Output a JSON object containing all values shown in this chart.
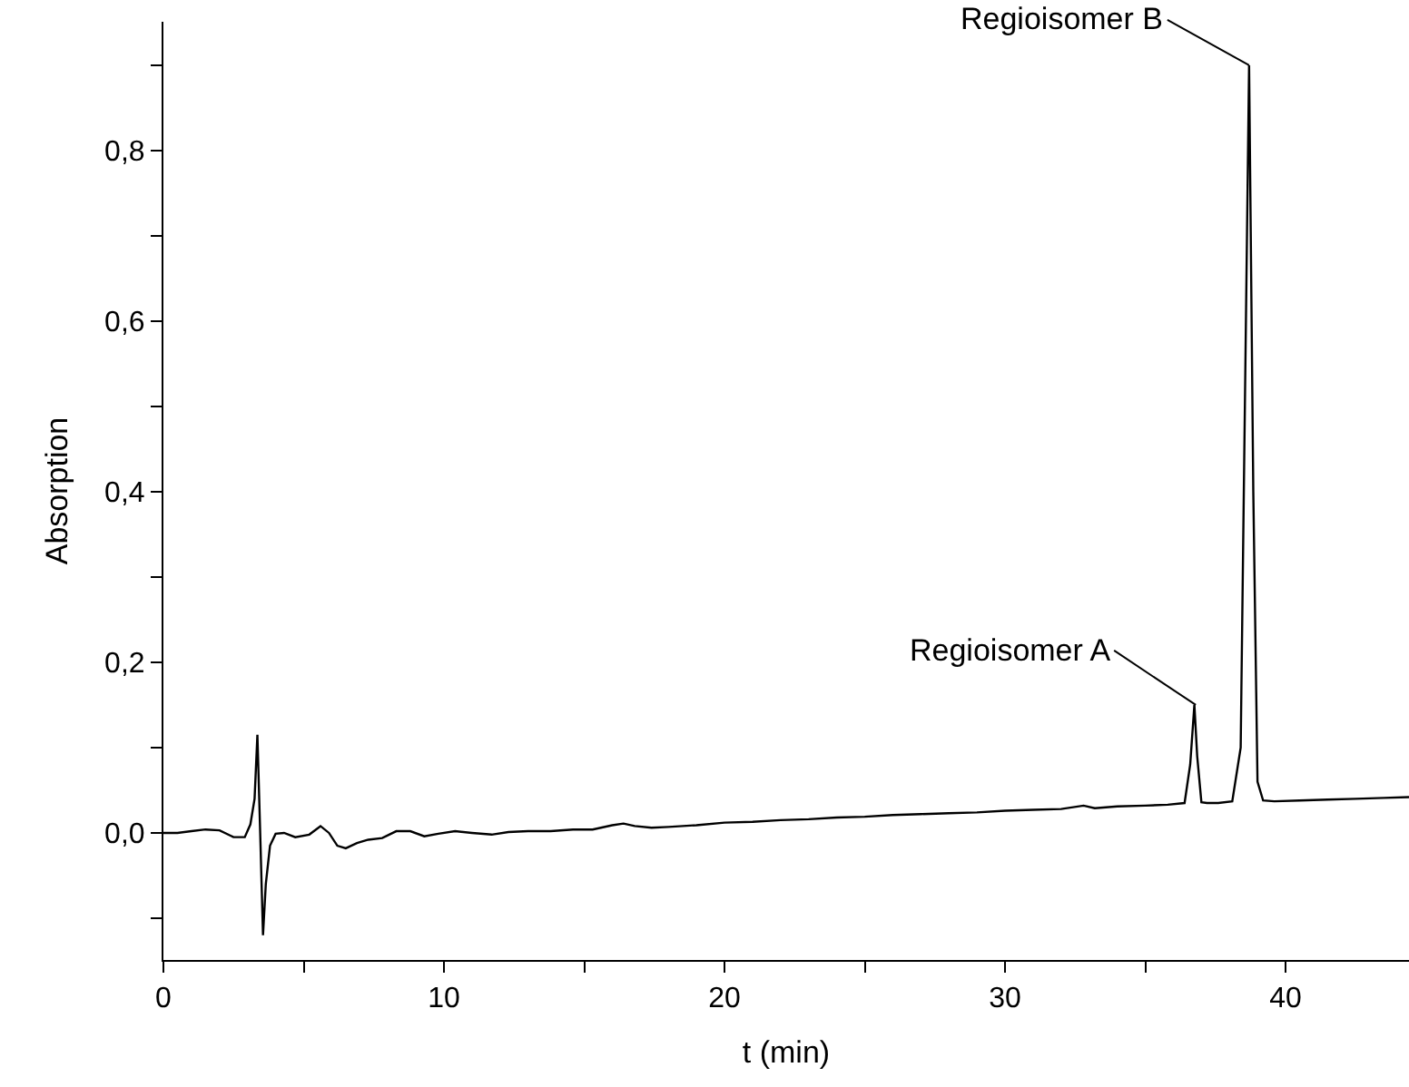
{
  "chart_data": {
    "type": "line",
    "xlabel": "t (min)",
    "ylabel": "Absorption",
    "xlim": [
      0,
      44.4
    ],
    "ylim": [
      -0.149,
      0.951
    ],
    "xticks": [
      0,
      {
        "value": 5,
        "label": null
      },
      10,
      {
        "value": 15,
        "label": null
      },
      20,
      {
        "value": 25,
        "label": null
      },
      30,
      {
        "value": 35,
        "label": null
      },
      40
    ],
    "yticks": [
      {
        "value": -0.1,
        "label": null
      },
      {
        "value": 0.0,
        "label": "0,0"
      },
      {
        "value": 0.1,
        "label": null
      },
      {
        "value": 0.2,
        "label": "0,2"
      },
      {
        "value": 0.3,
        "label": null
      },
      {
        "value": 0.4,
        "label": "0,4"
      },
      {
        "value": 0.5,
        "label": null
      },
      {
        "value": 0.6,
        "label": "0,6"
      },
      {
        "value": 0.7,
        "label": null
      },
      {
        "value": 0.8,
        "label": "0,8"
      },
      {
        "value": 0.9,
        "label": null
      }
    ],
    "marker": "none",
    "line_style": "solid",
    "series": [
      {
        "color": "#000000",
        "x": [
          0,
          0.5,
          1,
          1.5,
          2,
          2.5,
          2.9,
          3.1,
          3.25,
          3.35,
          3.45,
          3.55,
          3.65,
          3.8,
          4.0,
          4.3,
          4.7,
          5.2,
          5.6,
          5.9,
          6.2,
          6.5,
          6.9,
          7.3,
          7.8,
          8.3,
          8.8,
          9.3,
          9.8,
          10.4,
          11,
          11.7,
          12.3,
          13,
          13.8,
          14.6,
          15.3,
          16,
          16.4,
          16.8,
          17.4,
          18,
          19,
          20,
          21,
          22,
          23,
          24,
          25,
          26,
          27,
          28,
          29,
          30,
          31,
          32,
          32.8,
          33.2,
          34,
          35,
          35.8,
          36.4,
          36.6,
          36.75,
          36.85,
          37.0,
          37.2,
          37.6,
          38.1,
          38.4,
          38.55,
          38.7,
          38.85,
          39.0,
          39.2,
          39.6,
          40.5,
          41.5,
          42.5,
          43.5,
          44.4
        ],
        "values": [
          0.0,
          0.0,
          0.002,
          0.004,
          0.003,
          -0.005,
          -0.005,
          0.01,
          0.04,
          0.115,
          0.0,
          -0.12,
          -0.06,
          -0.015,
          -0.001,
          0.0,
          -0.005,
          -0.002,
          0.008,
          0.0,
          -0.015,
          -0.018,
          -0.012,
          -0.008,
          -0.006,
          0.002,
          0.002,
          -0.004,
          -0.001,
          0.002,
          0.0,
          -0.002,
          0.001,
          0.002,
          0.002,
          0.004,
          0.004,
          0.009,
          0.011,
          0.008,
          0.006,
          0.007,
          0.009,
          0.012,
          0.013,
          0.015,
          0.016,
          0.018,
          0.019,
          0.021,
          0.022,
          0.023,
          0.024,
          0.026,
          0.027,
          0.028,
          0.032,
          0.029,
          0.031,
          0.032,
          0.033,
          0.035,
          0.08,
          0.15,
          0.09,
          0.036,
          0.035,
          0.035,
          0.037,
          0.1,
          0.5,
          0.9,
          0.4,
          0.06,
          0.038,
          0.037,
          0.038,
          0.039,
          0.04,
          0.041,
          0.042
        ]
      }
    ],
    "annotations": [
      {
        "text": "Regioisomer A",
        "x": 36.8,
        "y": 0.15
      },
      {
        "text": "Regioisomer B",
        "x": 38.7,
        "y": 0.9
      }
    ]
  }
}
